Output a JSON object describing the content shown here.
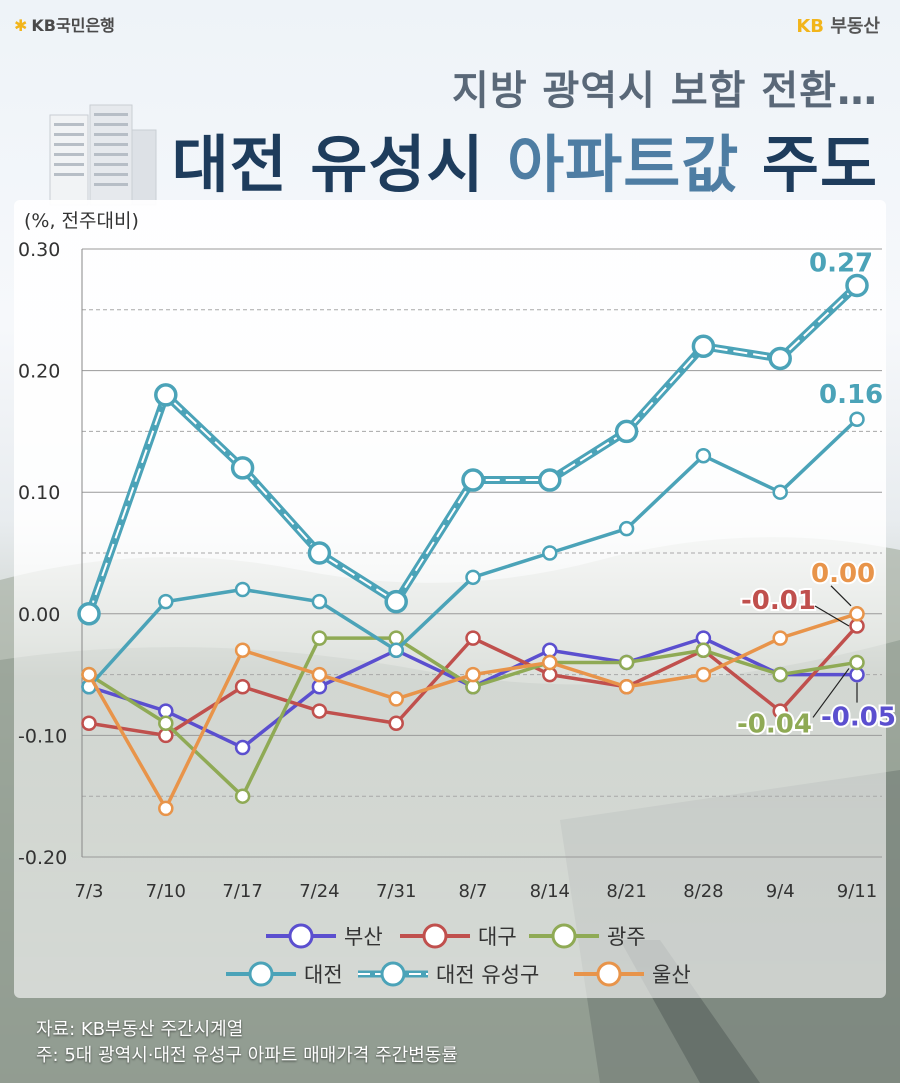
{
  "header": {
    "bank_logo": "KB국민은행",
    "brand_logo": "부동산",
    "brand_logo_prefix": "KB",
    "subtitle": "지방 광역시 보합 전환…",
    "title_part1": "대전 유성시",
    "title_part2": "아파트값",
    "title_part3": "주도"
  },
  "footer": {
    "source": "자료: KB부동산 주간시계열",
    "note": "주: 5대 광역시·대전 유성구 아파트 매매가격 주간변동률"
  },
  "chart_data": {
    "type": "line",
    "unit_label": "(%, 전주대비)",
    "categories": [
      "7/3",
      "7/10",
      "7/17",
      "7/24",
      "7/31",
      "8/7",
      "8/14",
      "8/21",
      "8/28",
      "9/4",
      "9/11"
    ],
    "ylim": [
      -0.2,
      0.3
    ],
    "yticks": [
      "0.30",
      "0.20",
      "0.10",
      "0.00",
      "-0.10",
      "-0.20"
    ],
    "ytick_values": [
      0.3,
      0.2,
      0.1,
      0.0,
      -0.1,
      -0.2
    ],
    "grid": true,
    "legend_position": "bottom",
    "series": [
      {
        "name": "부산",
        "color": "#5b4fcf",
        "values": [
          -0.06,
          -0.08,
          -0.11,
          -0.06,
          -0.03,
          -0.06,
          -0.03,
          -0.04,
          -0.02,
          -0.05,
          -0.05
        ]
      },
      {
        "name": "대구",
        "color": "#c0504d",
        "values": [
          -0.09,
          -0.1,
          -0.06,
          -0.08,
          -0.09,
          -0.02,
          -0.05,
          -0.06,
          -0.03,
          -0.08,
          -0.01
        ]
      },
      {
        "name": "광주",
        "color": "#8faa55",
        "values": [
          -0.05,
          -0.09,
          -0.15,
          -0.02,
          -0.02,
          -0.06,
          -0.04,
          -0.04,
          -0.03,
          -0.05,
          -0.04
        ]
      },
      {
        "name": "대전",
        "color": "#4ba3b8",
        "values": [
          -0.06,
          0.01,
          0.02,
          0.01,
          -0.03,
          0.03,
          0.05,
          0.07,
          0.13,
          0.1,
          0.16
        ]
      },
      {
        "name": "대전 유성구",
        "color": "#4ba3b8",
        "values": [
          0.0,
          0.18,
          0.12,
          0.05,
          0.01,
          0.11,
          0.11,
          0.15,
          0.22,
          0.21,
          0.27
        ]
      },
      {
        "name": "울산",
        "color": "#e8944a",
        "values": [
          -0.05,
          -0.16,
          -0.03,
          -0.05,
          -0.07,
          -0.05,
          -0.04,
          -0.06,
          -0.05,
          -0.02,
          0.0
        ]
      }
    ],
    "annotations": [
      {
        "series": "대전 유성구",
        "text": "0.27",
        "color": "#4ba3b8"
      },
      {
        "series": "대전",
        "text": "0.16",
        "color": "#4ba3b8"
      },
      {
        "series": "울산",
        "text": "0.00",
        "color": "#e8944a"
      },
      {
        "series": "대구",
        "text": "-0.01",
        "color": "#c0504d"
      },
      {
        "series": "광주",
        "text": "-0.04",
        "color": "#8faa55"
      },
      {
        "series": "부산",
        "text": "-0.05",
        "color": "#5b4fcf"
      }
    ]
  }
}
